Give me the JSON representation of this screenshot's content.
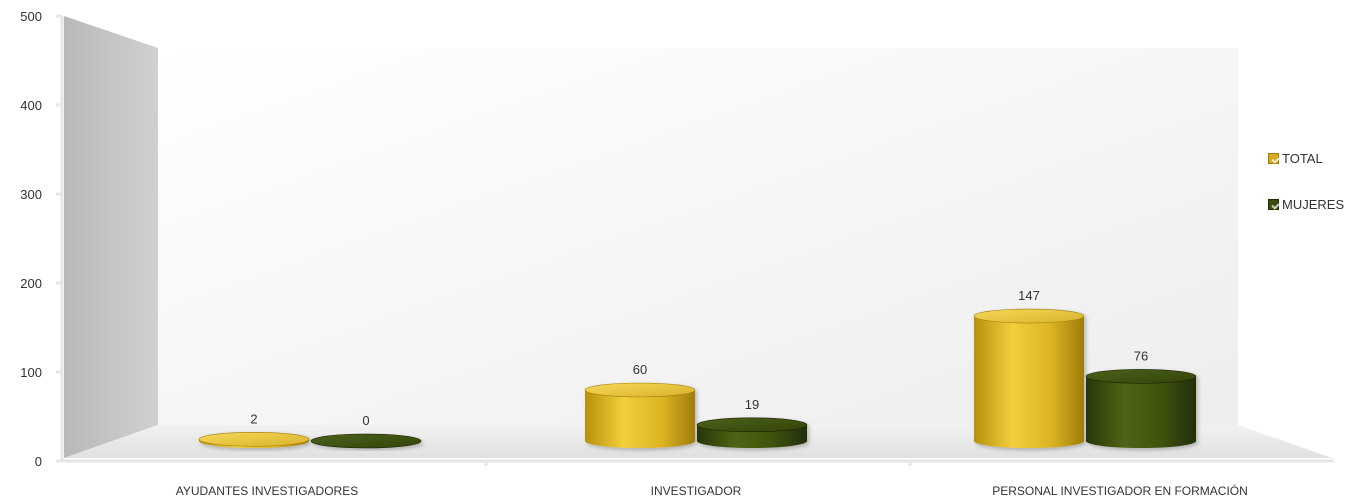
{
  "chart_data": {
    "type": "bar",
    "categories": [
      "AYUDANTES INVESTIGADORES",
      "INVESTIGADOR",
      "PERSONAL INVESTIGADOR EN FORMACIÓN"
    ],
    "series": [
      {
        "name": "TOTAL",
        "values": [
          2,
          60,
          147
        ],
        "color": "#d4ac1c"
      },
      {
        "name": "MUJERES",
        "values": [
          0,
          19,
          76
        ],
        "color": "#3b4d0c"
      }
    ],
    "yticks": [
      0,
      100,
      200,
      300,
      400,
      500
    ],
    "ylim": [
      0,
      500
    ],
    "title": "",
    "xlabel": "",
    "ylabel": "",
    "legend_position": "right"
  }
}
